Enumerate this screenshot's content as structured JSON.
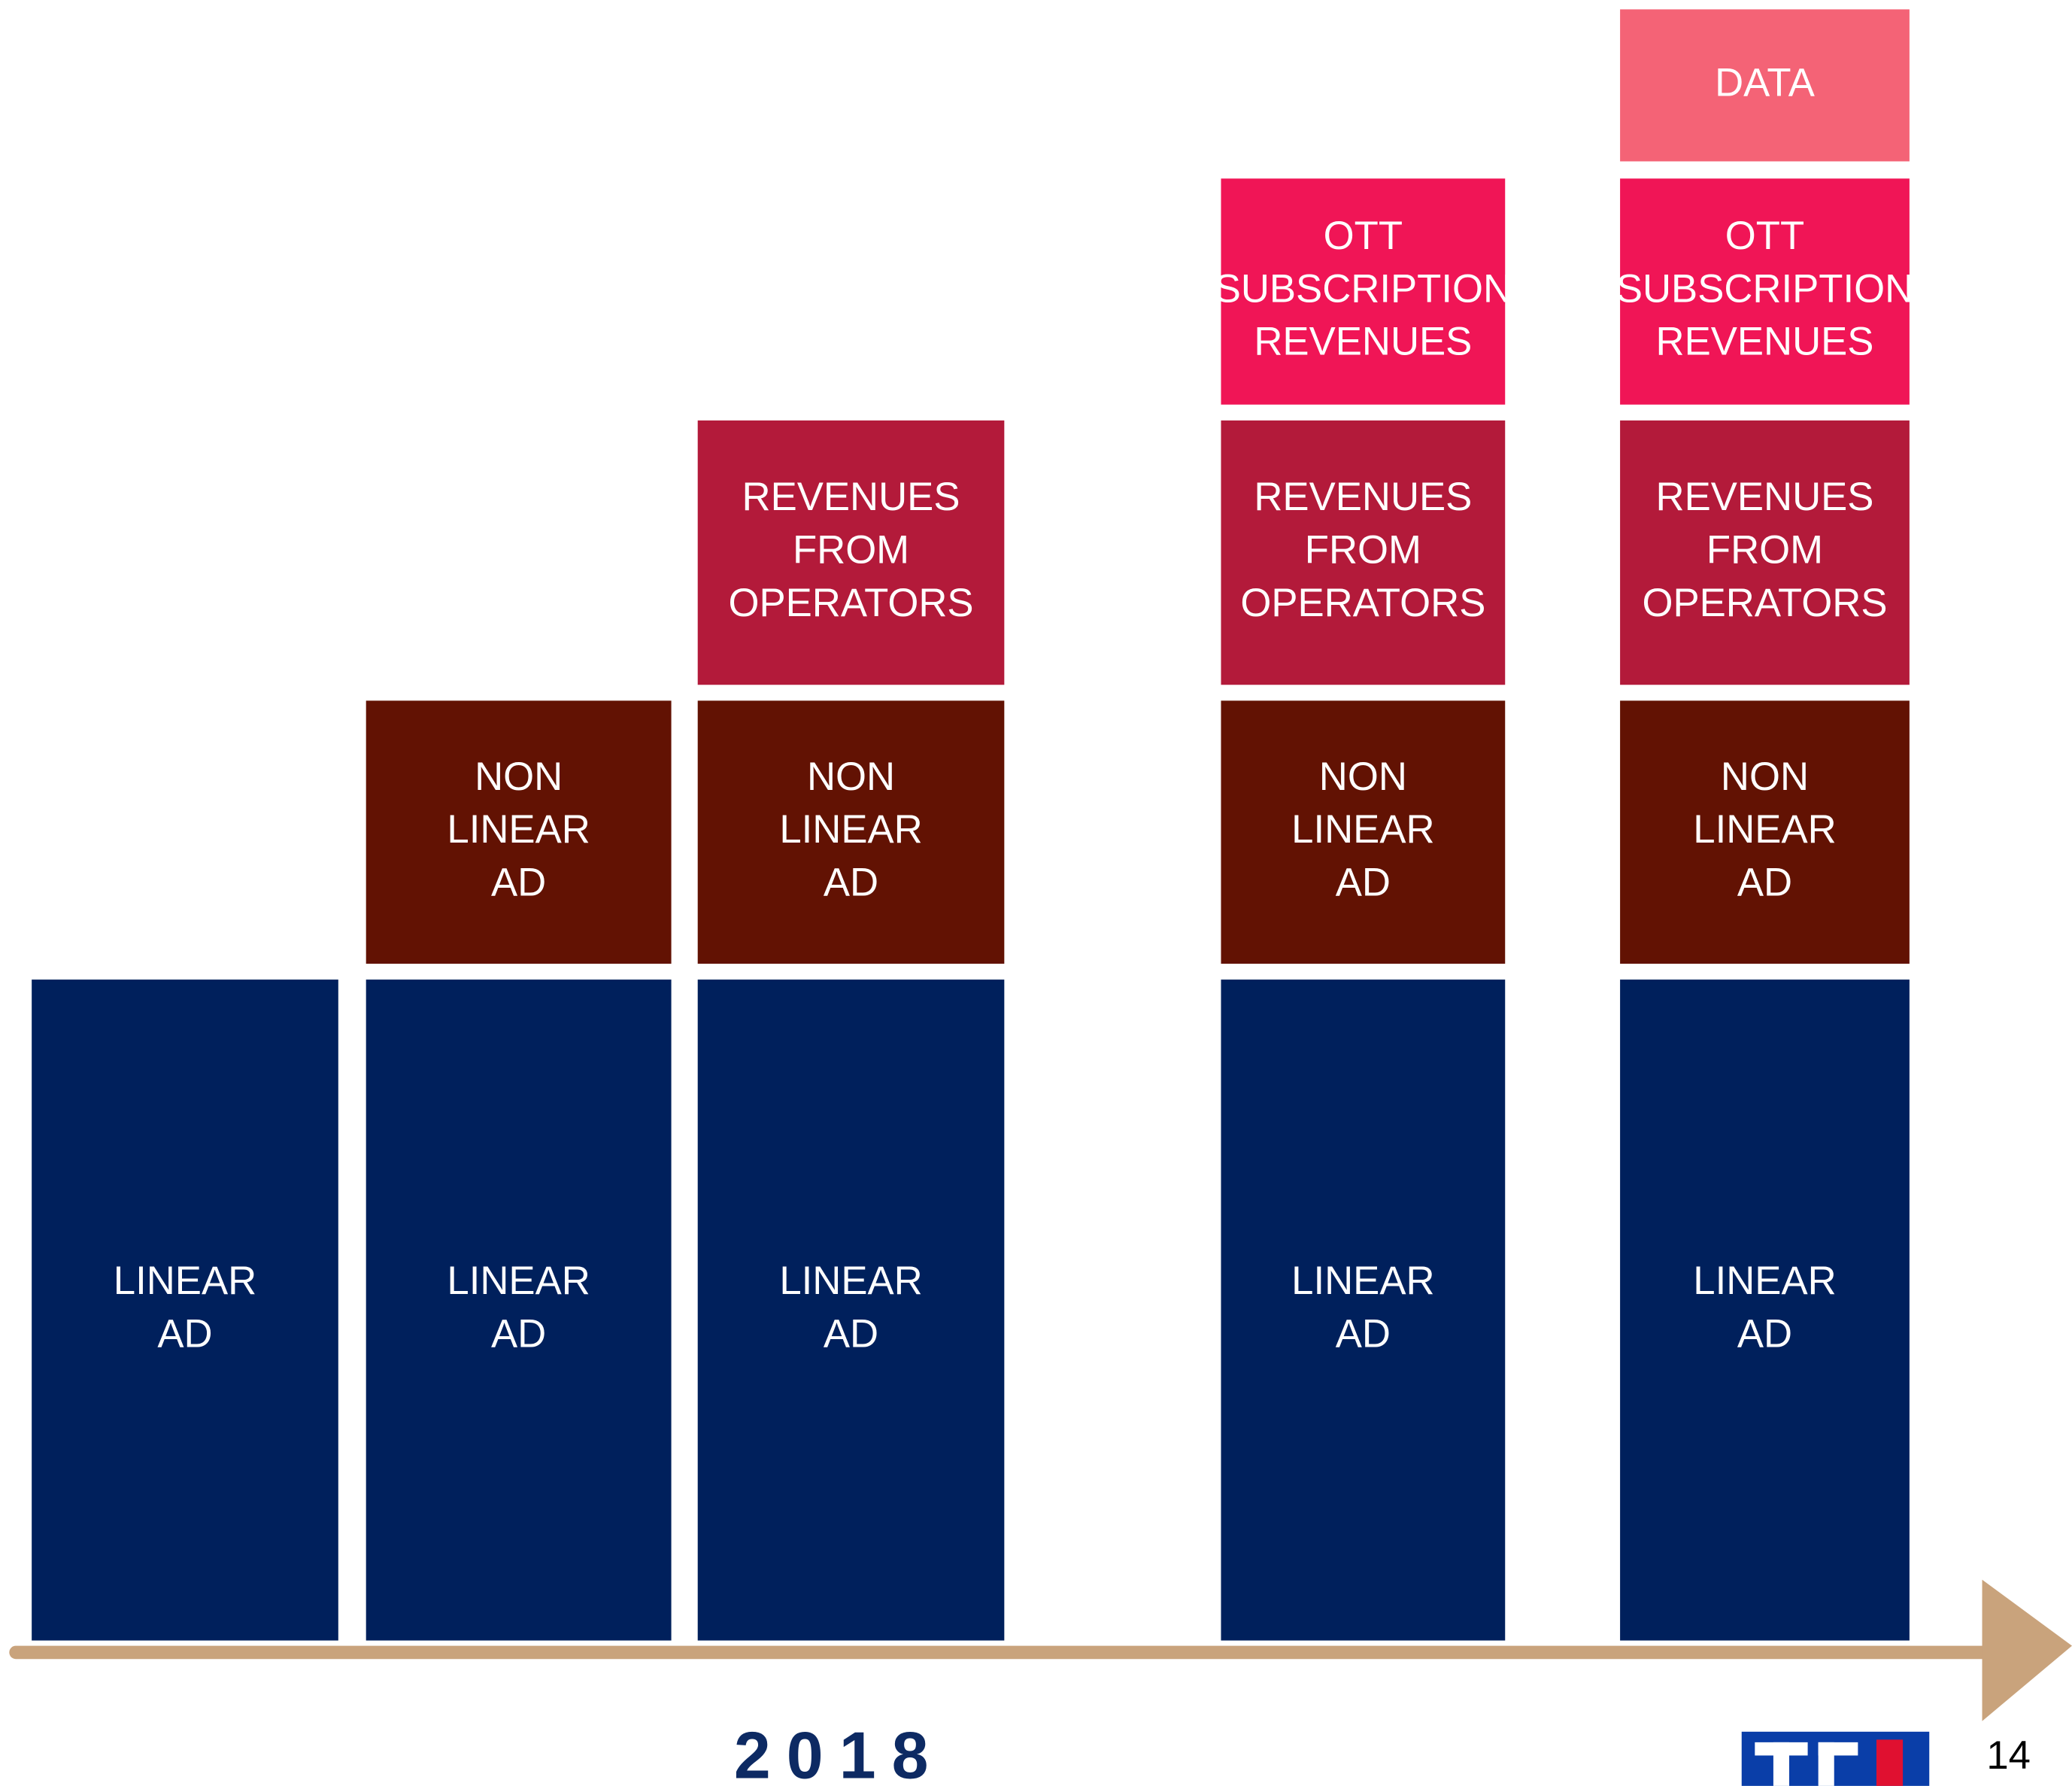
{
  "columns": [
    {
      "blocks": [
        {
          "lines": [
            "LINEAR",
            "AD"
          ],
          "color": "#00205c"
        }
      ]
    },
    {
      "blocks": [
        {
          "lines": [
            "LINEAR",
            "AD"
          ],
          "color": "#00205c"
        },
        {
          "lines": [
            "NON",
            "LINEAR",
            "AD"
          ],
          "color": "#621203"
        }
      ]
    },
    {
      "blocks": [
        {
          "lines": [
            "LINEAR",
            "AD"
          ],
          "color": "#00205c"
        },
        {
          "lines": [
            "NON",
            "LINEAR",
            "AD"
          ],
          "color": "#621203"
        },
        {
          "lines": [
            "REVENUES",
            "FROM",
            "OPERATORS"
          ],
          "color": "#b31a3a"
        }
      ]
    },
    {
      "blocks": [
        {
          "lines": [
            "LINEAR",
            "AD"
          ],
          "color": "#00205c"
        },
        {
          "lines": [
            "NON",
            "LINEAR",
            "AD"
          ],
          "color": "#621203"
        },
        {
          "lines": [
            "REVENUES",
            "FROM",
            "OPERATORS"
          ],
          "color": "#b31a3a"
        },
        {
          "lines": [
            "OTT",
            "SUBSCRIPTION",
            "REVENUES"
          ],
          "color": "#f01556"
        }
      ]
    },
    {
      "blocks": [
        {
          "lines": [
            "LINEAR",
            "AD"
          ],
          "color": "#00205c"
        },
        {
          "lines": [
            "NON",
            "LINEAR",
            "AD"
          ],
          "color": "#621203"
        },
        {
          "lines": [
            "REVENUES",
            "FROM",
            "OPERATORS"
          ],
          "color": "#b31a3a"
        },
        {
          "lines": [
            "OTT",
            "SUBSCRIPTION",
            "REVENUES"
          ],
          "color": "#f01556"
        },
        {
          "lines": [
            "DATA"
          ],
          "color": "#f46376"
        }
      ]
    }
  ],
  "footer": {
    "year": "2018",
    "page": "14"
  }
}
